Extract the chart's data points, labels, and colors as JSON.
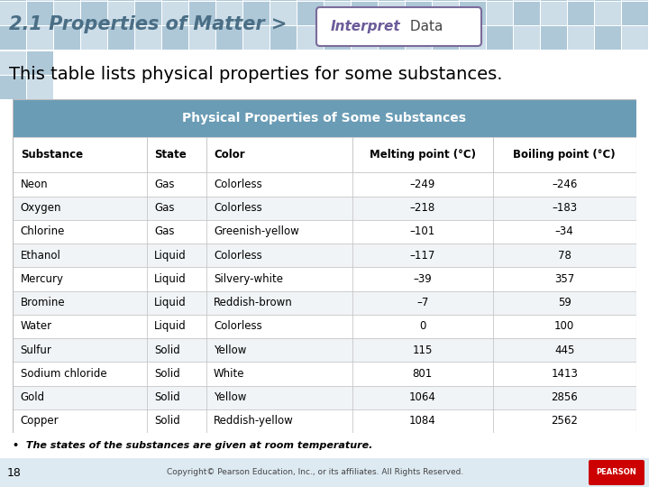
{
  "title_main": "2.1 Properties of Matter >",
  "title_badge_bold": "Interpret",
  "title_badge_normal": " Data",
  "subtitle": "This table lists physical properties for some substances.",
  "table_title": "Physical Properties of Some Substances",
  "col_headers": [
    "Substance",
    "State",
    "Color",
    "Melting point (°C)",
    "Boiling point (°C)"
  ],
  "rows": [
    [
      "Neon",
      "Gas",
      "Colorless",
      "–249",
      "–246"
    ],
    [
      "Oxygen",
      "Gas",
      "Colorless",
      "–218",
      "–183"
    ],
    [
      "Chlorine",
      "Gas",
      "Greenish-yellow",
      "–101",
      "–34"
    ],
    [
      "Ethanol",
      "Liquid",
      "Colorless",
      "–117",
      "78"
    ],
    [
      "Mercury",
      "Liquid",
      "Silvery-white",
      "–39",
      "357"
    ],
    [
      "Bromine",
      "Liquid",
      "Reddish-brown",
      "–7",
      "59"
    ],
    [
      "Water",
      "Liquid",
      "Colorless",
      "0",
      "100"
    ],
    [
      "Sulfur",
      "Solid",
      "Yellow",
      "115",
      "445"
    ],
    [
      "Sodium chloride",
      "Solid",
      "White",
      "801",
      "1413"
    ],
    [
      "Gold",
      "Solid",
      "Yellow",
      "1064",
      "2856"
    ],
    [
      "Copper",
      "Solid",
      "Reddish-yellow",
      "1084",
      "2562"
    ]
  ],
  "footnote": "•  The states of the substances are given at room temperature.",
  "page_num": "18",
  "copyright": "Copyright© Pearson Education, Inc., or its affiliates. All Rights Reserved.",
  "tile_color_dark": "#aec8d8",
  "tile_color_light": "#ccdde8",
  "header_bg": "#c5dae6",
  "table_header_color": "#6a9cb5",
  "badge_border_color": "#7a6b9a",
  "badge_text_bold_color": "#6b5b99",
  "badge_text_normal_color": "#444444",
  "row_even_color": "#ffffff",
  "row_odd_color": "#f0f4f7",
  "grid_color": "#bbbbbb",
  "pearson_red": "#cc0000",
  "bottom_bg": "#ddeaf2"
}
